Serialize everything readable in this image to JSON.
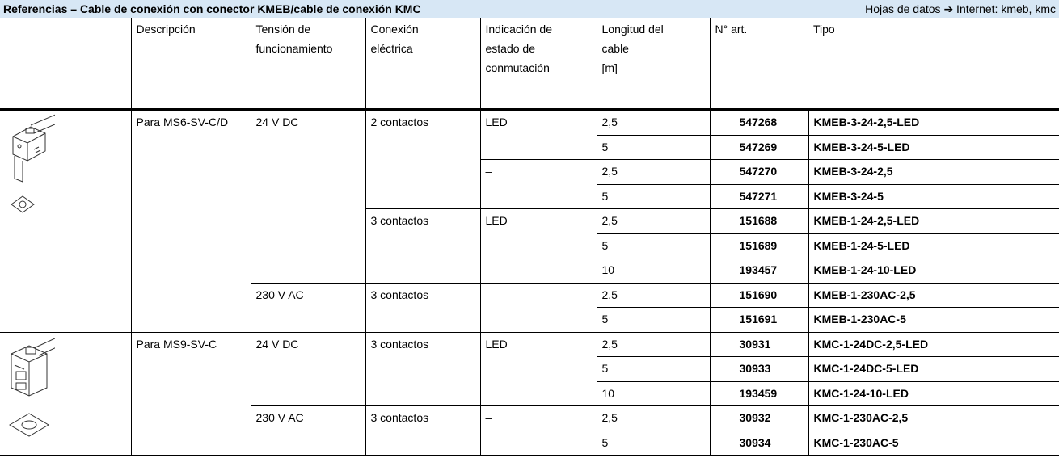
{
  "header": {
    "title": "Referencias – Cable de conexión con conector KMEB/cable de conexión KMC",
    "note": "Hojas de datos ➔ Internet: kmeb, kmc"
  },
  "table": {
    "columns": [
      [
        "Descripción"
      ],
      [
        "Tensión de",
        "funcionamiento"
      ],
      [
        "Conexión",
        "eléctrica"
      ],
      [
        "Indicación de",
        "estado de",
        "conmutación"
      ],
      [
        "Longitud del",
        "cable",
        "[m]"
      ],
      [
        "N° art."
      ],
      [
        "Tipo"
      ]
    ],
    "groups": [
      {
        "description": "Para MS6-SV-C/D",
        "voltages": [
          {
            "voltage": "24 V DC",
            "connections": [
              {
                "connection": "2 contactos",
                "indications": [
                  {
                    "indication": "LED",
                    "items": [
                      {
                        "length": "2,5",
                        "part": "547268",
                        "type": "KMEB-3-24-2,5-LED"
                      },
                      {
                        "length": "5",
                        "part": "547269",
                        "type": "KMEB-3-24-5-LED"
                      }
                    ]
                  },
                  {
                    "indication": "–",
                    "items": [
                      {
                        "length": "2,5",
                        "part": "547270",
                        "type": "KMEB-3-24-2,5"
                      },
                      {
                        "length": "5",
                        "part": "547271",
                        "type": "KMEB-3-24-5"
                      }
                    ]
                  }
                ]
              },
              {
                "connection": "3 contactos",
                "indications": [
                  {
                    "indication": "LED",
                    "items": [
                      {
                        "length": "2,5",
                        "part": "151688",
                        "type": "KMEB-1-24-2,5-LED"
                      },
                      {
                        "length": "5",
                        "part": "151689",
                        "type": "KMEB-1-24-5-LED"
                      },
                      {
                        "length": "10",
                        "part": "193457",
                        "type": "KMEB-1-24-10-LED"
                      }
                    ]
                  }
                ]
              }
            ]
          },
          {
            "voltage": "230 V AC",
            "connections": [
              {
                "connection": "3 contactos",
                "indications": [
                  {
                    "indication": "–",
                    "items": [
                      {
                        "length": "2,5",
                        "part": "151690",
                        "type": "KMEB-1-230AC-2,5"
                      },
                      {
                        "length": "5",
                        "part": "151691",
                        "type": "KMEB-1-230AC-5"
                      }
                    ]
                  }
                ]
              }
            ]
          }
        ]
      },
      {
        "description": "Para MS9-SV-C",
        "voltages": [
          {
            "voltage": "24 V DC",
            "connections": [
              {
                "connection": "3 contactos",
                "indications": [
                  {
                    "indication": "LED",
                    "items": [
                      {
                        "length": "2,5",
                        "part": "30931",
                        "type": "KMC-1-24DC-2,5-LED"
                      },
                      {
                        "length": "5",
                        "part": "30933",
                        "type": "KMC-1-24DC-5-LED"
                      },
                      {
                        "length": "10",
                        "part": "193459",
                        "type": "KMC-1-24-10-LED"
                      }
                    ]
                  }
                ]
              }
            ]
          },
          {
            "voltage": "230 V AC",
            "connections": [
              {
                "connection": "3 contactos",
                "indications": [
                  {
                    "indication": "–",
                    "items": [
                      {
                        "length": "2,5",
                        "part": "30932",
                        "type": "KMC-1-230AC-2,5"
                      },
                      {
                        "length": "5",
                        "part": "30934",
                        "type": "KMC-1-230AC-5"
                      }
                    ]
                  }
                ]
              }
            ]
          }
        ]
      }
    ]
  }
}
